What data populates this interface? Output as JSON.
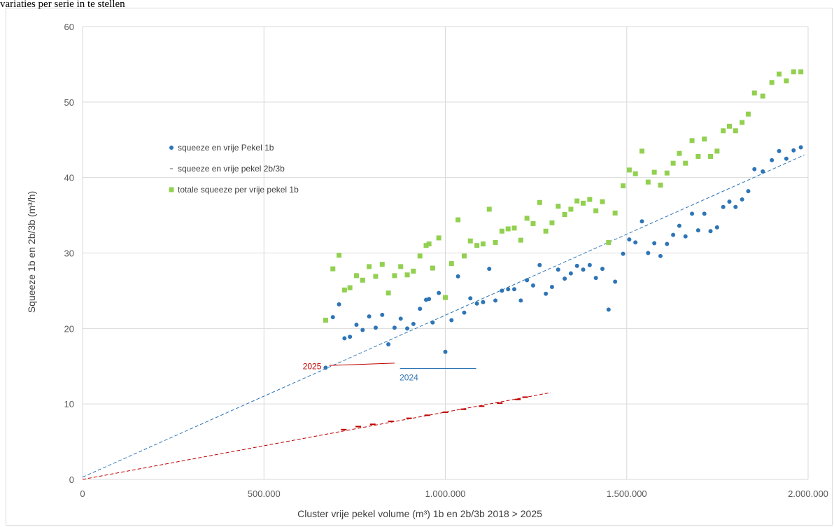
{
  "header_text": "variaties per serie in te stellen",
  "chart_data": {
    "type": "scatter",
    "xlabel": "Cluster vrije pekel volume (m³) 1b en 2b/3b 2018 > 2025",
    "ylabel": "Squeeze 1b en  2b/3b (m³/h)",
    "xlim": [
      0,
      2000000
    ],
    "ylim": [
      0,
      60
    ],
    "x_ticks": [
      0,
      500000,
      1000000,
      1500000,
      2000000
    ],
    "x_tick_labels": [
      "0",
      "500.000",
      "1.000.000",
      "1.500.000",
      "2.000.000"
    ],
    "y_ticks": [
      0,
      10,
      20,
      30,
      40,
      50,
      60
    ],
    "y_tick_labels": [
      "0",
      "10",
      "20",
      "30",
      "40",
      "50",
      "60"
    ],
    "grid": "major gridlines on",
    "legend_position": "upper-left inside plot",
    "series": [
      {
        "name": "squeeze en vrije Pekel 1b",
        "marker": "circle",
        "color": "#2e75b6",
        "x": [
          670000,
          690000,
          707000,
          722000,
          737000,
          755000,
          772000,
          790000,
          808000,
          826000,
          843000,
          860000,
          877000,
          895000,
          912000,
          930000,
          947000,
          955000,
          965000,
          982000,
          1000000,
          1017000,
          1035000,
          1052000,
          1069000,
          1087000,
          1104000,
          1121000,
          1138000,
          1156000,
          1173000,
          1190000,
          1208000,
          1225000,
          1242000,
          1260000,
          1277000,
          1294000,
          1311000,
          1329000,
          1346000,
          1363000,
          1380000,
          1398000,
          1415000,
          1433000,
          1450000,
          1468000,
          1490000,
          1507000,
          1524000,
          1542000,
          1559000,
          1576000,
          1593000,
          1611000,
          1628000,
          1645000,
          1662000,
          1680000,
          1697000,
          1714000,
          1731000,
          1749000,
          1766000,
          1783000,
          1800000,
          1818000,
          1835000,
          1852000,
          1875000,
          1900000,
          1920000,
          1940000,
          1960000,
          1980000
        ],
        "values": [
          14.8,
          21.5,
          23.2,
          18.7,
          18.9,
          20.5,
          19.8,
          21.6,
          20.1,
          21.8,
          17.9,
          20.1,
          21.3,
          20.0,
          20.6,
          22.6,
          23.8,
          23.9,
          20.8,
          24.7,
          16.9,
          21.1,
          26.9,
          22.1,
          24.0,
          23.3,
          23.5,
          27.9,
          23.7,
          25.0,
          25.2,
          25.2,
          23.7,
          26.4,
          25.7,
          28.4,
          24.6,
          25.5,
          27.8,
          26.6,
          27.3,
          28.3,
          27.8,
          28.4,
          26.7,
          27.9,
          22.5,
          26.2,
          29.9,
          31.8,
          31.4,
          34.2,
          30.0,
          31.3,
          29.6,
          31.2,
          32.4,
          33.6,
          32.2,
          35.2,
          33.0,
          35.2,
          32.9,
          33.4,
          36.1,
          36.8,
          36.1,
          37.1,
          38.2,
          41.1,
          40.8,
          42.3,
          43.5,
          42.5,
          43.6,
          44.0
        ],
        "note": "points approximate"
      },
      {
        "name": "squeeze en vrije pekel 2b/3b",
        "marker": "dash",
        "color": "#c00000",
        "x": [
          720000,
          760000,
          800000,
          850000,
          900000,
          950000,
          1000000,
          1050000,
          1100000,
          1150000,
          1200000,
          1220000
        ],
        "values": [
          6.6,
          7.0,
          7.3,
          7.7,
          8.1,
          8.5,
          8.9,
          9.3,
          9.7,
          10.1,
          10.6,
          10.9
        ]
      },
      {
        "name": "totale squeeze per vrije pekel 1b",
        "marker": "square",
        "color": "#92d050",
        "x": [
          670000,
          690000,
          707000,
          722000,
          737000,
          755000,
          772000,
          790000,
          808000,
          826000,
          843000,
          860000,
          877000,
          895000,
          912000,
          930000,
          947000,
          955000,
          965000,
          982000,
          1000000,
          1017000,
          1035000,
          1052000,
          1069000,
          1087000,
          1104000,
          1121000,
          1138000,
          1156000,
          1173000,
          1190000,
          1208000,
          1225000,
          1242000,
          1260000,
          1277000,
          1294000,
          1311000,
          1329000,
          1346000,
          1363000,
          1380000,
          1398000,
          1415000,
          1433000,
          1450000,
          1468000,
          1490000,
          1507000,
          1524000,
          1542000,
          1559000,
          1576000,
          1593000,
          1611000,
          1628000,
          1645000,
          1662000,
          1680000,
          1697000,
          1714000,
          1731000,
          1749000,
          1766000,
          1783000,
          1800000,
          1818000,
          1835000,
          1852000,
          1875000,
          1900000,
          1920000,
          1940000,
          1960000,
          1980000
        ],
        "values": [
          21.1,
          27.9,
          29.7,
          25.1,
          25.4,
          27.0,
          26.4,
          28.2,
          26.9,
          28.5,
          24.7,
          27.0,
          28.2,
          27.1,
          27.6,
          29.6,
          31.0,
          31.2,
          28.0,
          32.0,
          24.1,
          28.6,
          34.4,
          29.6,
          31.6,
          31.0,
          31.2,
          35.8,
          31.4,
          32.9,
          33.2,
          33.3,
          31.7,
          34.6,
          33.9,
          36.7,
          32.9,
          34.0,
          36.2,
          35.1,
          35.8,
          36.9,
          36.6,
          37.1,
          35.6,
          36.8,
          31.4,
          35.3,
          38.9,
          41.0,
          40.5,
          43.5,
          39.4,
          40.7,
          39.0,
          40.6,
          41.9,
          43.2,
          41.9,
          44.9,
          42.8,
          45.1,
          42.8,
          43.5,
          46.2,
          46.8,
          46.2,
          47.3,
          48.4,
          51.2,
          50.8,
          52.6,
          53.7,
          52.8,
          54.0,
          54.0
        ]
      }
    ],
    "trendlines": [
      {
        "series": "squeeze en vrije Pekel 1b",
        "color": "#2e75b6",
        "style": "dashed",
        "x": [
          0,
          1990000
        ],
        "y": [
          0.3,
          43.0
        ]
      },
      {
        "series": "squeeze en vrije pekel 2b/3b",
        "color": "#c00000",
        "style": "dashed",
        "x": [
          0,
          1290000
        ],
        "y": [
          0.0,
          11.5
        ]
      }
    ],
    "annotations": [
      {
        "text": "2025",
        "color": "#c00000",
        "x": 670000,
        "y": 15.0
      },
      {
        "text": "2024",
        "color": "#2e75b6",
        "x": 870000,
        "y": 14.6
      }
    ]
  }
}
